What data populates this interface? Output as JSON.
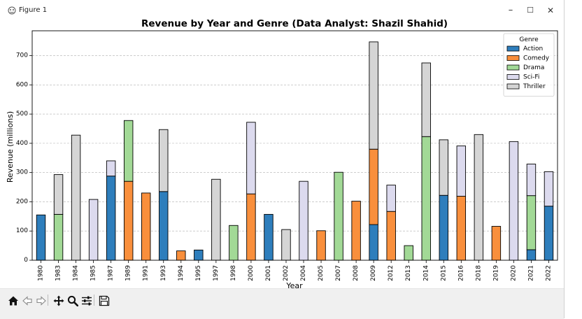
{
  "window": {
    "title": "Figure 1",
    "minimize_glyph": "–",
    "maximize_glyph": "☐",
    "close_glyph": "✕"
  },
  "toolbar": {
    "buttons": [
      "home-icon",
      "back-icon",
      "forward-icon",
      "pan-icon",
      "zoom-icon",
      "configure-subplots-icon",
      "save-icon"
    ]
  },
  "chart_data": {
    "type": "bar",
    "stacked": true,
    "title": "Revenue by Year and Genre (Data Analyst: Shazil Shahid)",
    "xlabel": "Year",
    "ylabel": "Revenue (millions)",
    "ylim": [
      0,
      785
    ],
    "yticks": [
      0,
      100,
      200,
      300,
      400,
      500,
      600,
      700
    ],
    "grid": "horizontal dashed",
    "legend": {
      "title": "Genre",
      "placement": "top-right"
    },
    "categories": [
      "1980",
      "1983",
      "1984",
      "1985",
      "1987",
      "1989",
      "1991",
      "1993",
      "1994",
      "1995",
      "1997",
      "1998",
      "2000",
      "2001",
      "2002",
      "2004",
      "2005",
      "2007",
      "2008",
      "2009",
      "2012",
      "2013",
      "2014",
      "2015",
      "2016",
      "2018",
      "2019",
      "2020",
      "2021",
      "2022"
    ],
    "series": [
      {
        "name": "Action",
        "color": "#2e7ebc",
        "values": [
          155,
          0,
          0,
          0,
          288,
          0,
          0,
          235,
          0,
          35,
          0,
          0,
          0,
          157,
          0,
          0,
          0,
          0,
          0,
          122,
          0,
          0,
          0,
          222,
          0,
          0,
          0,
          0,
          36,
          185
        ]
      },
      {
        "name": "Comedy",
        "color": "#f98f3c",
        "values": [
          0,
          0,
          0,
          0,
          0,
          270,
          230,
          0,
          32,
          0,
          0,
          0,
          227,
          0,
          0,
          0,
          101,
          0,
          202,
          258,
          167,
          0,
          0,
          0,
          219,
          0,
          116,
          0,
          0,
          0
        ]
      },
      {
        "name": "Drama",
        "color": "#a2d996",
        "values": [
          0,
          157,
          0,
          0,
          0,
          208,
          0,
          0,
          0,
          0,
          0,
          119,
          0,
          0,
          0,
          0,
          0,
          301,
          0,
          0,
          0,
          50,
          423,
          0,
          0,
          0,
          0,
          0,
          185,
          0
        ]
      },
      {
        "name": "Sci-Fi",
        "color": "#dcdaee",
        "values": [
          0,
          0,
          0,
          208,
          52,
          0,
          0,
          0,
          0,
          0,
          0,
          0,
          245,
          0,
          0,
          270,
          0,
          0,
          0,
          0,
          90,
          0,
          0,
          0,
          172,
          0,
          0,
          406,
          108,
          118
        ]
      },
      {
        "name": "Thriller",
        "color": "#d5d5d5",
        "values": [
          0,
          136,
          428,
          0,
          0,
          0,
          0,
          212,
          0,
          0,
          277,
          0,
          0,
          0,
          105,
          0,
          0,
          0,
          0,
          367,
          0,
          0,
          252,
          190,
          0,
          430,
          0,
          0,
          0,
          0
        ]
      }
    ]
  }
}
